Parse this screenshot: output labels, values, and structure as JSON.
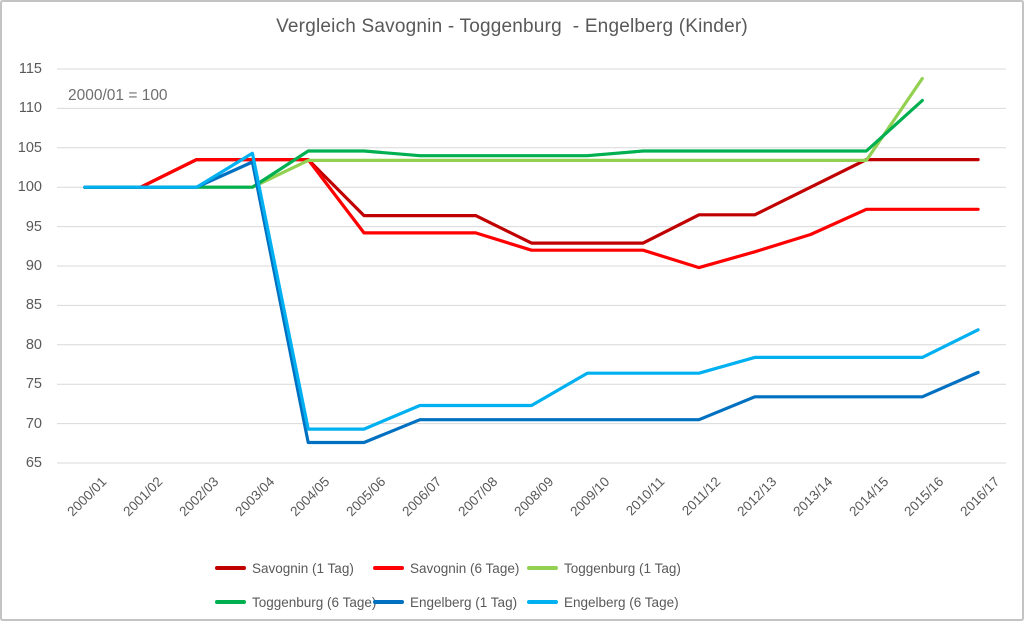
{
  "title": "Vergleich Savognin - Toggenburg  - Engelberg (Kinder)",
  "annotation": "2000/01 = 100",
  "chart_data": {
    "type": "line",
    "title": "Vergleich Savognin - Toggenburg  - Engelberg (Kinder)",
    "annotation": "2000/01 = 100",
    "categories": [
      "2000/01",
      "2001/02",
      "2002/03",
      "2003/04",
      "2004/05",
      "2005/06",
      "2006/07",
      "2007/08",
      "2008/09",
      "2009/10",
      "2010/11",
      "2011/12",
      "2012/13",
      "2013/14",
      "2014/15",
      "2015/16",
      "2016/17"
    ],
    "ylim": [
      65,
      115
    ],
    "ytick_step": 5,
    "ytick_labels": [
      "115",
      "110",
      "105",
      "100",
      "95",
      "90",
      "85",
      "80",
      "75",
      "70",
      "65"
    ],
    "grid": "horizontal",
    "gridline_color": "#d9d9d9",
    "legend_position": "bottom",
    "legend_rows": 2,
    "series": [
      {
        "name": "Savognin (1 Tag)",
        "color": "#C00000",
        "values": [
          100,
          100,
          103.5,
          103.5,
          103.5,
          96.4,
          96.4,
          96.4,
          92.9,
          92.9,
          92.9,
          96.5,
          96.5,
          100,
          103.5,
          103.5,
          103.5
        ]
      },
      {
        "name": "Savognin (6 Tage)",
        "color": "#FF0000",
        "values": [
          100,
          100,
          103.5,
          103.5,
          103.5,
          94.2,
          94.2,
          94.2,
          92,
          92,
          92,
          89.8,
          91.8,
          94,
          97.2,
          97.2,
          97.2
        ]
      },
      {
        "name": "Toggenburg (1 Tag)",
        "color": "#92D050",
        "values": [
          100,
          100,
          100,
          100,
          103.4,
          103.4,
          103.4,
          103.4,
          103.4,
          103.4,
          103.4,
          103.4,
          103.4,
          103.4,
          103.4,
          113.8,
          null
        ]
      },
      {
        "name": "Toggenburg (6 Tage)",
        "color": "#00B050",
        "values": [
          100,
          100,
          100,
          100,
          104.6,
          104.6,
          104,
          104,
          104,
          104,
          104.6,
          104.6,
          104.6,
          104.6,
          104.6,
          111,
          null
        ]
      },
      {
        "name": "Engelberg (1 Tag)",
        "color": "#0070C0",
        "values": [
          100,
          100,
          100,
          103.2,
          67.6,
          67.6,
          70.5,
          70.5,
          70.5,
          70.5,
          70.5,
          70.5,
          73.4,
          73.4,
          73.4,
          73.4,
          76.5
        ]
      },
      {
        "name": "Engelberg (6 Tage)",
        "color": "#00B0F0",
        "values": [
          100,
          100,
          100,
          104.3,
          69.3,
          69.3,
          72.3,
          72.3,
          72.3,
          76.4,
          76.4,
          76.4,
          78.4,
          78.4,
          78.4,
          78.4,
          81.9
        ]
      }
    ]
  },
  "colors": {
    "text": "#595959",
    "annotation_text": "#6f6f6f",
    "frame_border": "#c3c3c3",
    "background": "#ffffff"
  }
}
